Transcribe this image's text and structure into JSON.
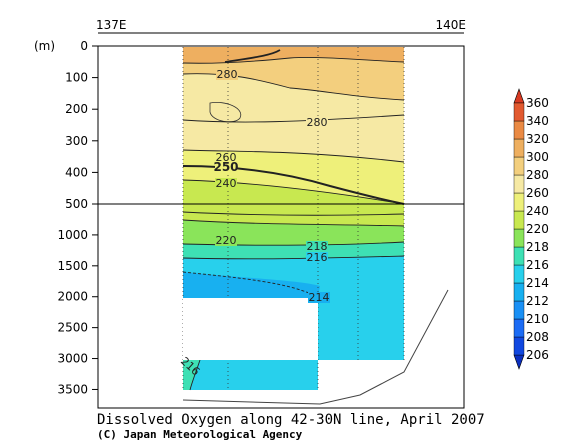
{
  "chart_data": {
    "type": "heatmap",
    "title": "Dissolved Oxygen along 42-30N line, April 2007",
    "credit": "(C) Japan Meteorological Agency",
    "x_axis": {
      "ticks": [
        "137E",
        "140E"
      ],
      "range": [
        137,
        140
      ]
    },
    "y_axis": {
      "unit_label": "(m)",
      "upper_ticks": [
        0,
        100,
        200,
        300,
        400,
        500
      ],
      "lower_ticks": [
        1000,
        1500,
        2000,
        2500,
        3000,
        3500
      ],
      "upper_range": [
        0,
        500
      ],
      "lower_range": [
        500,
        3800
      ],
      "scale_break_at": 500
    },
    "colorbar": {
      "levels": [
        206,
        208,
        210,
        212,
        214,
        216,
        218,
        220,
        240,
        260,
        280,
        300,
        320,
        340,
        360
      ],
      "colors": [
        "#0a2fc0",
        "#1148e0",
        "#1c6cf5",
        "#1a90f5",
        "#18b0f0",
        "#28d0ec",
        "#3ee0b4",
        "#8ae45a",
        "#c8e850",
        "#eef07a",
        "#f6e9a4",
        "#f3cf7e",
        "#eeaf60",
        "#ea8a44",
        "#e25a30",
        "#d83a22"
      ]
    },
    "contour_labels": [
      "280",
      "280",
      "260",
      "250",
      "240",
      "220",
      "218",
      "216",
      "214",
      "216"
    ]
  }
}
